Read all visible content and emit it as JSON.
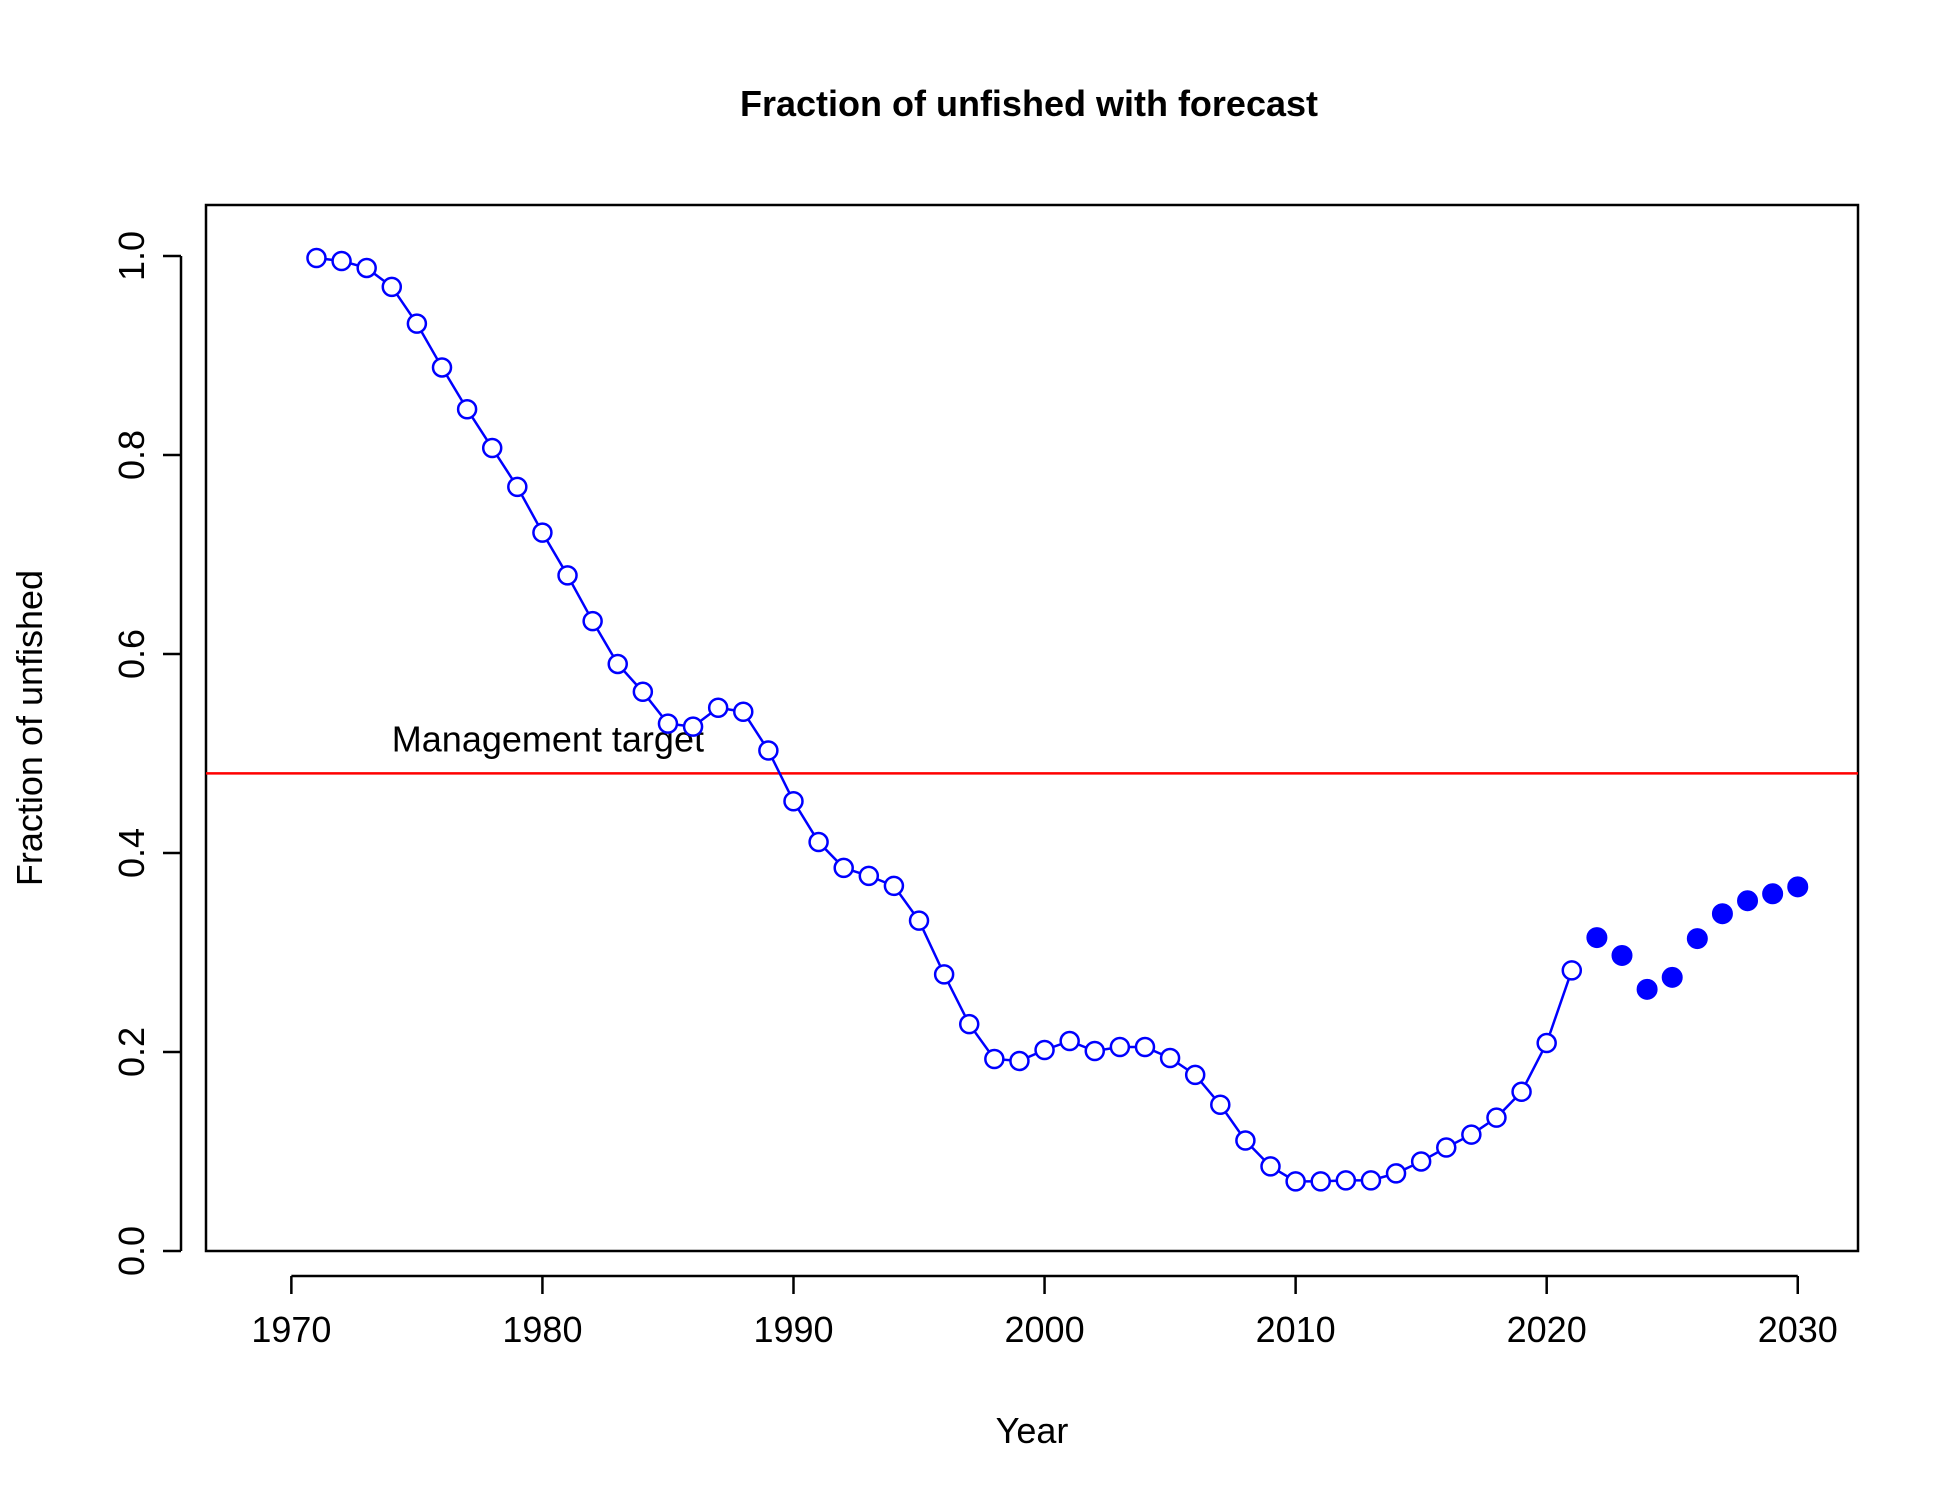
{
  "chart_data": {
    "type": "line",
    "title": "Fraction of unfished with forecast",
    "xlabel": "Year",
    "ylabel": "Fraction of unfished",
    "xlim": [
      1966.6,
      2032.4
    ],
    "ylim": [
      0,
      1.0
    ],
    "xticks": [
      1970,
      1980,
      1990,
      2000,
      2010,
      2020,
      2030
    ],
    "yticks": [
      0.0,
      0.2,
      0.4,
      0.6,
      0.8,
      1.0
    ],
    "ytick_labels": [
      "0.0",
      "0.2",
      "0.4",
      "0.6",
      "0.8",
      "1.0"
    ],
    "grid": false,
    "series": [
      {
        "style": "line-with-open-circles",
        "color": "#0000ff",
        "x": [
          1971,
          1972,
          1973,
          1974,
          1975,
          1976,
          1977,
          1978,
          1979,
          1980,
          1981,
          1982,
          1983,
          1984,
          1985,
          1986,
          1987,
          1988,
          1989,
          1990,
          1991,
          1992,
          1993,
          1994,
          1995,
          1996,
          1997,
          1998,
          1999,
          2000,
          2001,
          2002,
          2003,
          2004,
          2005,
          2006,
          2007,
          2008,
          2009,
          2010,
          2011,
          2012,
          2013,
          2014,
          2015,
          2016,
          2017,
          2018,
          2019,
          2020,
          2021
        ],
        "y": [
          0.998,
          0.995,
          0.988,
          0.969,
          0.932,
          0.888,
          0.846,
          0.807,
          0.768,
          0.722,
          0.679,
          0.633,
          0.59,
          0.562,
          0.53,
          0.527,
          0.546,
          0.542,
          0.503,
          0.452,
          0.411,
          0.385,
          0.377,
          0.367,
          0.332,
          0.278,
          0.228,
          0.193,
          0.191,
          0.202,
          0.211,
          0.201,
          0.205,
          0.205,
          0.194,
          0.177,
          0.147,
          0.111,
          0.085,
          0.07,
          0.07,
          0.071,
          0.071,
          0.078,
          0.09,
          0.104,
          0.117,
          0.134,
          0.16,
          0.209,
          0.282
        ]
      },
      {
        "style": "filled-points",
        "color": "#0000ff",
        "x": [
          2022,
          2023,
          2024,
          2025,
          2026,
          2027,
          2028,
          2029,
          2030
        ],
        "y": [
          0.315,
          0.297,
          0.263,
          0.275,
          0.314,
          0.339,
          0.352,
          0.359,
          0.366
        ]
      }
    ],
    "hline": {
      "y": 0.48,
      "color": "#ff0000",
      "label": "Management target",
      "label_x": 1974
    }
  }
}
